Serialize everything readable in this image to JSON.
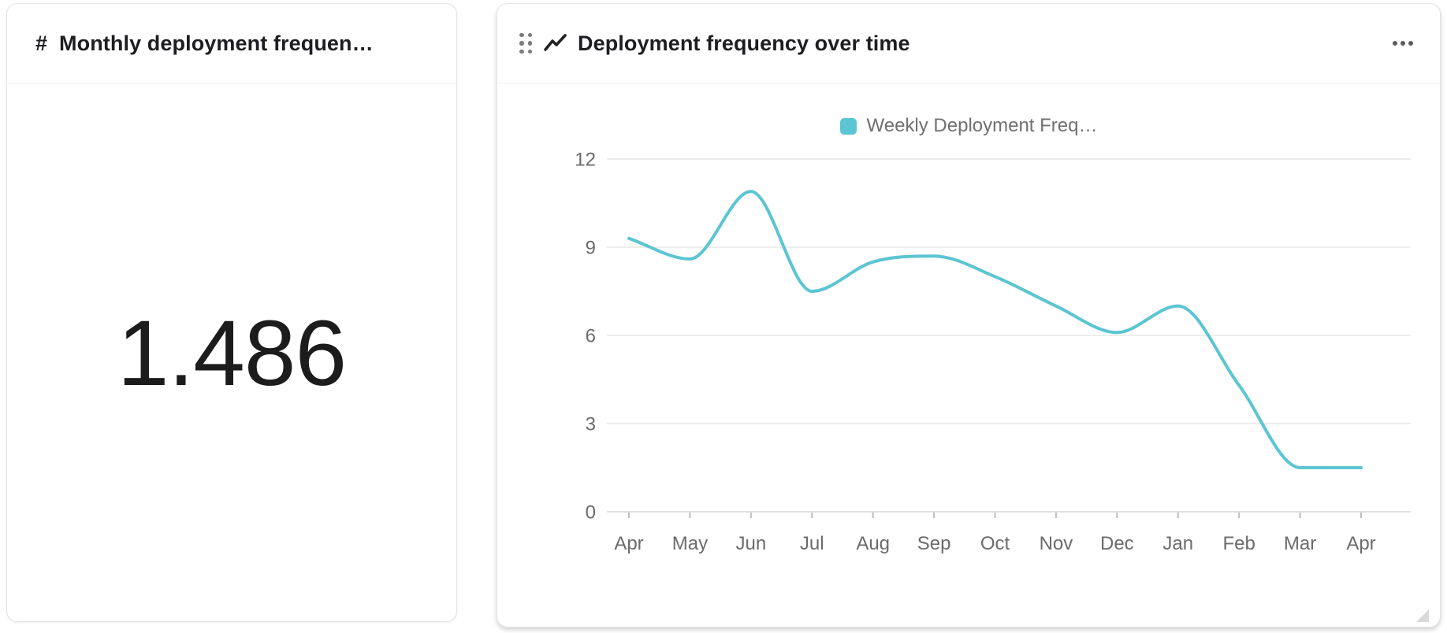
{
  "page": {
    "background": "#ffffff"
  },
  "left_card": {
    "title_icon": "#",
    "title": "Monthly deployment frequen…",
    "value": "1.486"
  },
  "right_card": {
    "drag_handle_icon": "six-dots-grip",
    "chart_icon": "trend-line",
    "title": "Deployment frequency over time",
    "menu_icon": "horizontal-ellipsis"
  },
  "chart_data": {
    "type": "line",
    "title": "Deployment frequency over time",
    "x_labels": [
      "Apr",
      "May",
      "Jun",
      "Jul",
      "Aug",
      "Sep",
      "Oct",
      "Nov",
      "Dec",
      "Jan",
      "Feb",
      "Mar",
      "Apr"
    ],
    "series": [
      {
        "name": "Weekly Deployment Freq…",
        "color": "#5bc5d2",
        "values": [
          9.3,
          8.6,
          10.9,
          7.5,
          8.5,
          8.7,
          8.0,
          7.0,
          6.1,
          7.0,
          4.3,
          1.5,
          1.5
        ]
      }
    ],
    "legend": [
      {
        "label": "Weekly Deployment Freq…",
        "color": "#5bc5d2"
      }
    ],
    "y_ticks": [
      0,
      3,
      6,
      9,
      12
    ],
    "ylim": [
      0,
      12
    ],
    "grid": true,
    "legend_position": "top",
    "grid_color": "#ededed",
    "axis_color": "#e2e2e2",
    "tick_color": "#bdbdbd",
    "label_color": "#6b6b6b",
    "line_width": 4
  }
}
